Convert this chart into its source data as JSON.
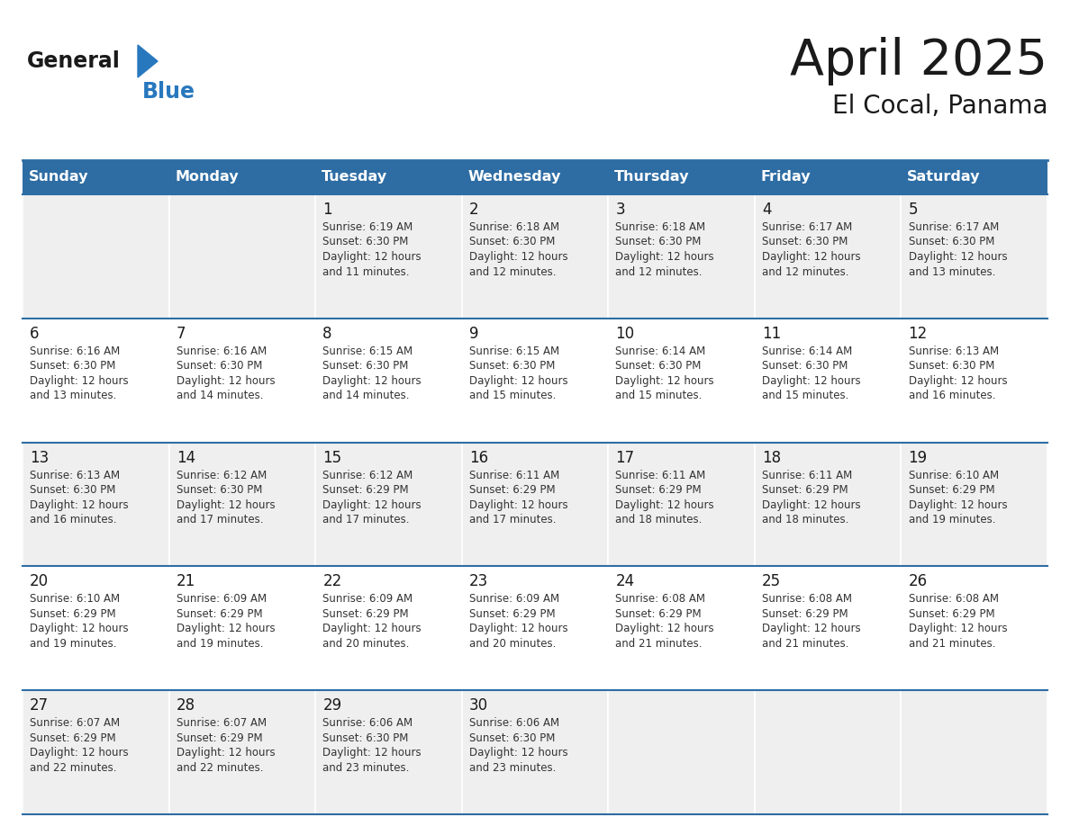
{
  "title": "April 2025",
  "subtitle": "El Cocal, Panama",
  "header_bg_color": "#2E6DA4",
  "header_text_color": "#FFFFFF",
  "cell_bg_even": "#FFFFFF",
  "cell_bg_odd": "#EFEFEF",
  "day_names": [
    "Sunday",
    "Monday",
    "Tuesday",
    "Wednesday",
    "Thursday",
    "Friday",
    "Saturday"
  ],
  "text_color": "#333333",
  "line_color": "#2E6DA4",
  "logo_general_color": "#1a1a1a",
  "logo_blue_color": "#2878BE",
  "logo_triangle_color": "#2878BE",
  "title_fontsize": 40,
  "subtitle_fontsize": 20,
  "dayname_fontsize": 11.5,
  "daynum_fontsize": 12,
  "cell_text_fontsize": 8.5,
  "days": [
    {
      "day": 1,
      "col": 2,
      "row": 0,
      "sunrise": "6:19 AM",
      "sunset": "6:30 PM",
      "dl_min": "11"
    },
    {
      "day": 2,
      "col": 3,
      "row": 0,
      "sunrise": "6:18 AM",
      "sunset": "6:30 PM",
      "dl_min": "12"
    },
    {
      "day": 3,
      "col": 4,
      "row": 0,
      "sunrise": "6:18 AM",
      "sunset": "6:30 PM",
      "dl_min": "12"
    },
    {
      "day": 4,
      "col": 5,
      "row": 0,
      "sunrise": "6:17 AM",
      "sunset": "6:30 PM",
      "dl_min": "12"
    },
    {
      "day": 5,
      "col": 6,
      "row": 0,
      "sunrise": "6:17 AM",
      "sunset": "6:30 PM",
      "dl_min": "13"
    },
    {
      "day": 6,
      "col": 0,
      "row": 1,
      "sunrise": "6:16 AM",
      "sunset": "6:30 PM",
      "dl_min": "13"
    },
    {
      "day": 7,
      "col": 1,
      "row": 1,
      "sunrise": "6:16 AM",
      "sunset": "6:30 PM",
      "dl_min": "14"
    },
    {
      "day": 8,
      "col": 2,
      "row": 1,
      "sunrise": "6:15 AM",
      "sunset": "6:30 PM",
      "dl_min": "14"
    },
    {
      "day": 9,
      "col": 3,
      "row": 1,
      "sunrise": "6:15 AM",
      "sunset": "6:30 PM",
      "dl_min": "15"
    },
    {
      "day": 10,
      "col": 4,
      "row": 1,
      "sunrise": "6:14 AM",
      "sunset": "6:30 PM",
      "dl_min": "15"
    },
    {
      "day": 11,
      "col": 5,
      "row": 1,
      "sunrise": "6:14 AM",
      "sunset": "6:30 PM",
      "dl_min": "15"
    },
    {
      "day": 12,
      "col": 6,
      "row": 1,
      "sunrise": "6:13 AM",
      "sunset": "6:30 PM",
      "dl_min": "16"
    },
    {
      "day": 13,
      "col": 0,
      "row": 2,
      "sunrise": "6:13 AM",
      "sunset": "6:30 PM",
      "dl_min": "16"
    },
    {
      "day": 14,
      "col": 1,
      "row": 2,
      "sunrise": "6:12 AM",
      "sunset": "6:30 PM",
      "dl_min": "17"
    },
    {
      "day": 15,
      "col": 2,
      "row": 2,
      "sunrise": "6:12 AM",
      "sunset": "6:29 PM",
      "dl_min": "17"
    },
    {
      "day": 16,
      "col": 3,
      "row": 2,
      "sunrise": "6:11 AM",
      "sunset": "6:29 PM",
      "dl_min": "17"
    },
    {
      "day": 17,
      "col": 4,
      "row": 2,
      "sunrise": "6:11 AM",
      "sunset": "6:29 PM",
      "dl_min": "18"
    },
    {
      "day": 18,
      "col": 5,
      "row": 2,
      "sunrise": "6:11 AM",
      "sunset": "6:29 PM",
      "dl_min": "18"
    },
    {
      "day": 19,
      "col": 6,
      "row": 2,
      "sunrise": "6:10 AM",
      "sunset": "6:29 PM",
      "dl_min": "19"
    },
    {
      "day": 20,
      "col": 0,
      "row": 3,
      "sunrise": "6:10 AM",
      "sunset": "6:29 PM",
      "dl_min": "19"
    },
    {
      "day": 21,
      "col": 1,
      "row": 3,
      "sunrise": "6:09 AM",
      "sunset": "6:29 PM",
      "dl_min": "19"
    },
    {
      "day": 22,
      "col": 2,
      "row": 3,
      "sunrise": "6:09 AM",
      "sunset": "6:29 PM",
      "dl_min": "20"
    },
    {
      "day": 23,
      "col": 3,
      "row": 3,
      "sunrise": "6:09 AM",
      "sunset": "6:29 PM",
      "dl_min": "20"
    },
    {
      "day": 24,
      "col": 4,
      "row": 3,
      "sunrise": "6:08 AM",
      "sunset": "6:29 PM",
      "dl_min": "21"
    },
    {
      "day": 25,
      "col": 5,
      "row": 3,
      "sunrise": "6:08 AM",
      "sunset": "6:29 PM",
      "dl_min": "21"
    },
    {
      "day": 26,
      "col": 6,
      "row": 3,
      "sunrise": "6:08 AM",
      "sunset": "6:29 PM",
      "dl_min": "21"
    },
    {
      "day": 27,
      "col": 0,
      "row": 4,
      "sunrise": "6:07 AM",
      "sunset": "6:29 PM",
      "dl_min": "22"
    },
    {
      "day": 28,
      "col": 1,
      "row": 4,
      "sunrise": "6:07 AM",
      "sunset": "6:29 PM",
      "dl_min": "22"
    },
    {
      "day": 29,
      "col": 2,
      "row": 4,
      "sunrise": "6:06 AM",
      "sunset": "6:30 PM",
      "dl_min": "23"
    },
    {
      "day": 30,
      "col": 3,
      "row": 4,
      "sunrise": "6:06 AM",
      "sunset": "6:30 PM",
      "dl_min": "23"
    }
  ]
}
